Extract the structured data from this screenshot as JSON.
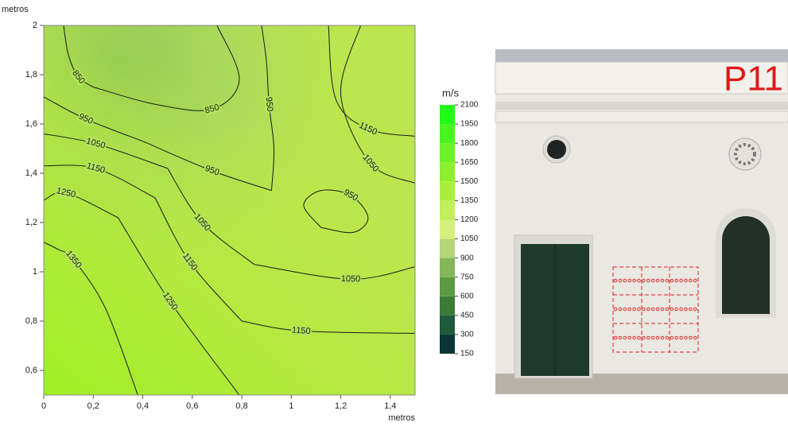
{
  "chart_data": {
    "type": "contour",
    "xlabel": "metros",
    "ylabel": "metros",
    "xlim": [
      0,
      1.5
    ],
    "ylim": [
      0.5,
      2
    ],
    "xticks": [
      0,
      {
        "value": 0.2,
        "label": "0,2"
      },
      {
        "value": 0.4,
        "label": "0,4"
      },
      {
        "value": 0.6,
        "label": "0,6"
      },
      {
        "value": 0.8,
        "label": "0,8"
      },
      1,
      {
        "value": 1.2,
        "label": "1,2"
      },
      {
        "value": 1.4,
        "label": "1,4"
      }
    ],
    "yticks": [
      {
        "value": 0.6,
        "label": "0,6"
      },
      {
        "value": 0.8,
        "label": "0,8"
      },
      1,
      {
        "value": 1.2,
        "label": "1,2"
      },
      {
        "value": 1.4,
        "label": "1,4"
      },
      {
        "value": 1.6,
        "label": "1,6"
      },
      {
        "value": 1.8,
        "label": "1,8"
      },
      2
    ],
    "line_color": "#1a1a1a",
    "contours": [
      {
        "level": 850,
        "x": [
          0.08,
          0.1,
          0.14,
          0.2
        ],
        "y": [
          2,
          1.88,
          1.79,
          1.75
        ]
      },
      {
        "level": 850,
        "x": [
          0.2,
          0.45,
          0.68,
          0.79,
          0.7
        ],
        "y": [
          1.75,
          1.68,
          1.66,
          1.78,
          2
        ]
      },
      {
        "level": 950,
        "x": [
          0,
          0.17,
          0.4
        ],
        "y": [
          1.71,
          1.62,
          1.53
        ]
      },
      {
        "level": 950,
        "x": [
          0.4,
          0.68,
          0.92
        ],
        "y": [
          1.53,
          1.41,
          1.33
        ]
      },
      {
        "level": 950,
        "x": [
          0.92,
          0.93,
          0.91,
          0.9,
          0.88
        ],
        "y": [
          1.33,
          1.5,
          1.68,
          1.85,
          2
        ]
      },
      {
        "level": 950,
        "x": [
          1.12,
          1.05,
          1.12,
          1.24,
          1.31,
          1.25,
          1.12
        ],
        "y": [
          1.18,
          1.27,
          1.33,
          1.31,
          1.22,
          1.16,
          1.18
        ]
      },
      {
        "level": 1050,
        "x": [
          0,
          0.21,
          0.5
        ],
        "y": [
          1.56,
          1.52,
          1.42
        ]
      },
      {
        "level": 1050,
        "x": [
          0.5,
          0.64,
          0.85
        ],
        "y": [
          1.42,
          1.2,
          1.03
        ]
      },
      {
        "level": 1050,
        "x": [
          0.85,
          1.24,
          1.5
        ],
        "y": [
          1.03,
          0.97,
          1.02
        ]
      },
      {
        "level": 1050,
        "x": [
          1.28,
          1.2,
          1.32,
          1.5
        ],
        "y": [
          2,
          1.72,
          1.44,
          1.36
        ]
      },
      {
        "level": 1150,
        "x": [
          1.15,
          1.18,
          1.31,
          1.5
        ],
        "y": [
          2,
          1.7,
          1.58,
          1.55
        ]
      },
      {
        "level": 1150,
        "x": [
          0,
          0.21,
          0.45
        ],
        "y": [
          1.43,
          1.42,
          1.3
        ]
      },
      {
        "level": 1150,
        "x": [
          0.45,
          0.59,
          0.8
        ],
        "y": [
          1.3,
          1.04,
          0.8
        ]
      },
      {
        "level": 1150,
        "x": [
          0.8,
          1.04,
          1.5
        ],
        "y": [
          0.8,
          0.76,
          0.75
        ]
      },
      {
        "level": 1250,
        "x": [
          0,
          0.09,
          0.3
        ],
        "y": [
          1.29,
          1.32,
          1.22
        ]
      },
      {
        "level": 1250,
        "x": [
          0.3,
          0.51,
          0.79
        ],
        "y": [
          1.22,
          0.88,
          0.5
        ]
      },
      {
        "level": 1350,
        "x": [
          0,
          0.06,
          0.12,
          0.25,
          0.38
        ],
        "y": [
          1.12,
          1.09,
          1.05,
          0.85,
          0.5
        ]
      }
    ],
    "colorbar": {
      "label": "m/s",
      "ticks": [
        150,
        300,
        450,
        600,
        750,
        900,
        1050,
        1200,
        1350,
        1500,
        1650,
        1800,
        1950,
        2100
      ],
      "colors": [
        "#0b3535",
        "#1f5a3a",
        "#3d7a3a",
        "#5d9a42",
        "#86b65a",
        "#b4d67a",
        "#d6f07e",
        "#c2ef5a",
        "#aaef40",
        "#8cf030",
        "#6cf228",
        "#48f520",
        "#22fa18"
      ]
    }
  },
  "photo": {
    "label": "P11"
  }
}
